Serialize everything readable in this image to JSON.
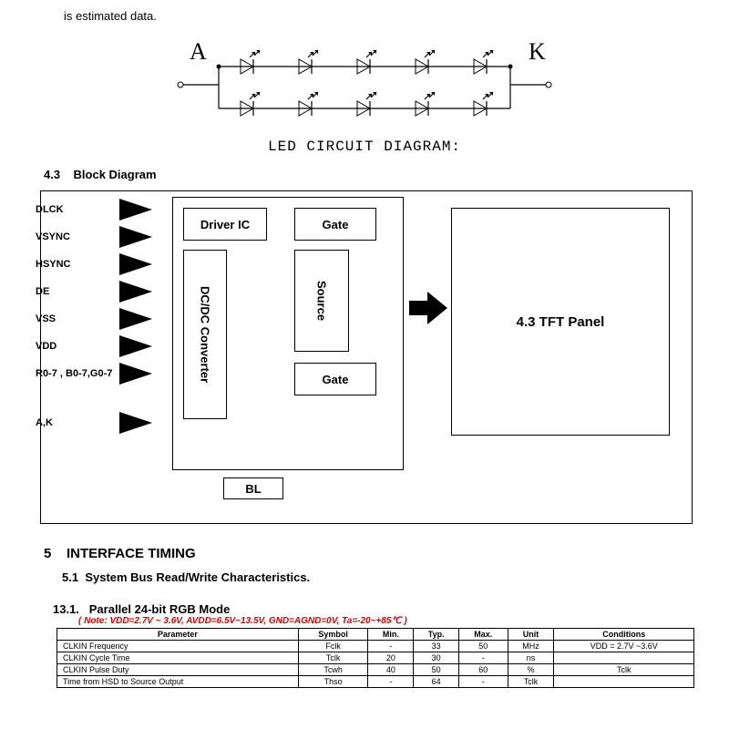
{
  "top_note": "is estimated data.",
  "led": {
    "terminal_left": "A",
    "terminal_right": "K",
    "caption": "LED CIRCUIT DIAGRAM:",
    "row_leds": 5,
    "rows": 2,
    "stroke": "#000000"
  },
  "section43": {
    "num": "4.3",
    "title": "Block Diagram"
  },
  "block": {
    "signals": [
      "DLCK",
      "VSYNC",
      "HSYNC",
      "DE",
      "VSS",
      "VDD",
      "R0-7 , B0-7,G0-7"
    ],
    "signals_lower": [
      "A,K"
    ],
    "boxes": {
      "driver_ic": "Driver IC",
      "gate": "Gate",
      "dcdc": "DC/DC Converter",
      "source": "Source",
      "bl": "BL",
      "tft": "4.3 TFT Panel"
    },
    "colors": {
      "border": "#000000",
      "arrow": "#000000"
    }
  },
  "section5": {
    "num": "5",
    "title": "INTERFACE TIMING"
  },
  "section51": {
    "num": "5.1",
    "title": "System Bus Read/Write Characteristics."
  },
  "section131": {
    "num": "13.1.",
    "title": "Parallel 24-bit RGB Mode"
  },
  "mode_note": "( Note: VDD=2.7V ~ 3.6V, AVDD=6.5V~13.5V, GND=AGND=0V, Ta=-20~+85℃ )",
  "timing": {
    "columns": [
      "Parameter",
      "Symbol",
      "Min.",
      "Typ.",
      "Max.",
      "Unit",
      "Conditions"
    ],
    "rows": [
      [
        "CLKIN Frequency",
        "Fclk",
        "-",
        "33",
        "50",
        "MHz",
        "VDD = 2.7V ~3.6V"
      ],
      [
        "CLKIN Cycle Time",
        "Tclk",
        "20",
        "30",
        "-",
        "ns",
        ""
      ],
      [
        "CLKIN Pulse Duty",
        "Tcwh",
        "40",
        "50",
        "60",
        "%",
        "Tclk"
      ],
      [
        "Time from HSD to Source Output",
        "Thso",
        "-",
        "64",
        "-",
        "Tclk",
        ""
      ]
    ]
  }
}
